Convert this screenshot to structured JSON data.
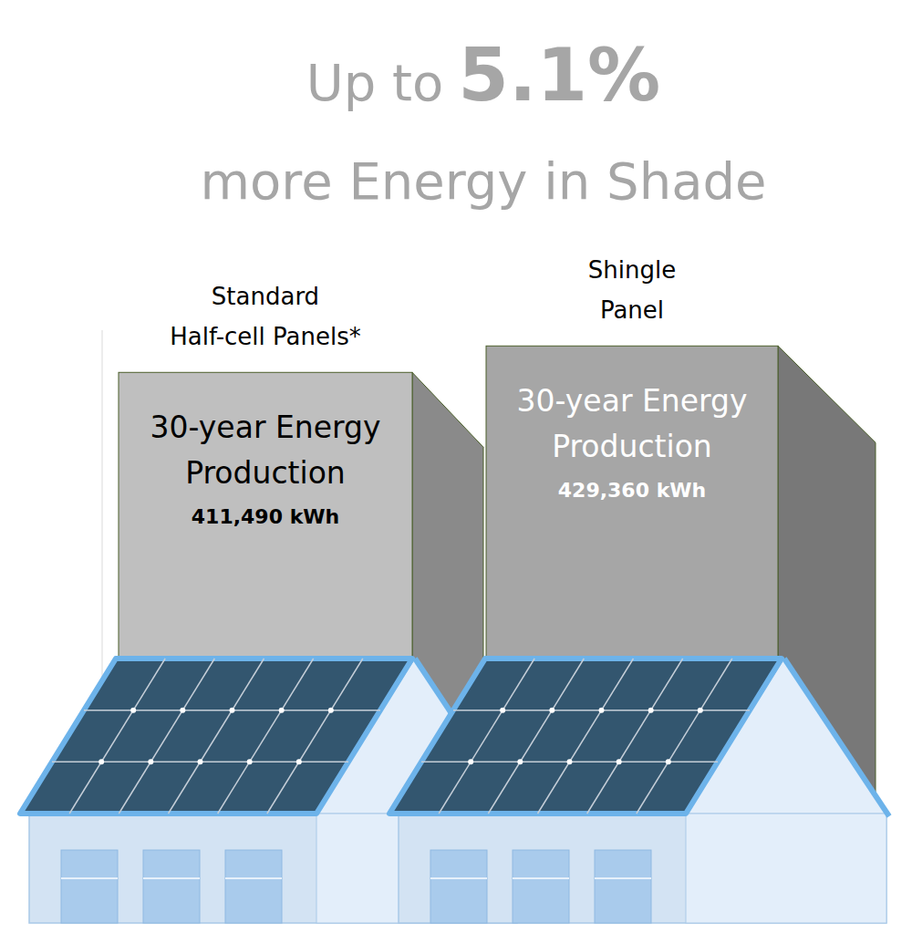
{
  "chart_data": {
    "type": "bar",
    "title": "Up to 5.1%",
    "subtitle": "more Energy in Shade",
    "categories": [
      "Standard Half-cell Panels*",
      "Shingle Panel"
    ],
    "values": [
      411490,
      429360
    ],
    "value_labels": [
      "411,490 kWh",
      "429,360 kWh"
    ],
    "annotations": [
      "30-year Energy Production",
      "30-year Energy Production"
    ],
    "colors": [
      "#bfbfbf",
      "#a6a6a6"
    ],
    "ylim": [
      100000,
      440000
    ],
    "yticks": [],
    "tick_labels": false,
    "data_labels": true,
    "grid": false
  }
}
